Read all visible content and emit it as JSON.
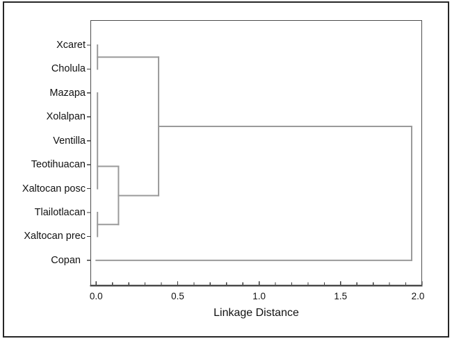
{
  "colors": {
    "dendrogram_line": "#9a9a9a",
    "axis": "#4c4c4c",
    "tick": "#3a3a3a",
    "text": "#111111",
    "figure_border": "#262626",
    "background": "#ffffff"
  },
  "chart_data": {
    "type": "dendrogram",
    "orientation": "horizontal, leaves on left",
    "xlabel": "Linkage Distance",
    "xlim": [
      0.0,
      2.0
    ],
    "x_tick_labels": [
      "0.0",
      "0.5",
      "1.0",
      "1.5",
      "2.0"
    ],
    "x_major_tick_values": [
      0.0,
      0.5,
      1.0,
      1.5,
      2.0
    ],
    "x_minor_tick_step": 0.1,
    "grid": "off",
    "leaves": [
      "Xcaret",
      "Cholula",
      "Mazapa",
      "Xolalpan",
      "Ventilla",
      "Teotihuacan",
      "Xaltocan posc",
      "Tlailotlacan",
      "Xaltocan prec",
      "Copan"
    ],
    "merges": [
      {
        "joins": "Xcaret + Cholula",
        "distance": 0.02
      },
      {
        "joins": "Mazapa + Xolalpan + Ventilla + Teotihuacan + Xaltocan posc (chained)",
        "distance": 0.02
      },
      {
        "joins": "Tlailotlacan + Xaltocan prec",
        "distance": 0.02
      },
      {
        "joins": "(Mazapa group) + (Tlailotlacan, Xaltocan prec)",
        "distance": 0.14
      },
      {
        "joins": "(Xcaret, Cholula) + (central 7-leaf group)",
        "distance": 0.38
      },
      {
        "joins": "(all above) + Copan",
        "distance": 1.94
      }
    ],
    "segments": [
      {
        "x1": 0.008,
        "i1": 0.0,
        "x2": 0.008,
        "i2": 1.0
      },
      {
        "x1": 0.008,
        "i1": 0.5,
        "x2": 0.383,
        "i2": 0.5
      },
      {
        "x1": 0.008,
        "i1": 2.0,
        "x2": 0.008,
        "i2": 6.0
      },
      {
        "x1": 0.008,
        "i1": 5.07,
        "x2": 0.137,
        "i2": 5.07
      },
      {
        "x1": 0.008,
        "i1": 7.0,
        "x2": 0.008,
        "i2": 8.0
      },
      {
        "x1": 0.008,
        "i1": 7.5,
        "x2": 0.137,
        "i2": 7.5
      },
      {
        "x1": 0.137,
        "i1": 5.07,
        "x2": 0.137,
        "i2": 7.5
      },
      {
        "x1": 0.137,
        "i1": 6.29,
        "x2": 0.383,
        "i2": 6.29
      },
      {
        "x1": 0.383,
        "i1": 0.5,
        "x2": 0.383,
        "i2": 6.29
      },
      {
        "x1": 0.383,
        "i1": 3.4,
        "x2": 1.936,
        "i2": 3.4
      },
      {
        "x1": 0.0,
        "i1": 9.0,
        "x2": 1.936,
        "i2": 9.0
      },
      {
        "x1": 1.936,
        "i1": 3.4,
        "x2": 1.936,
        "i2": 9.0
      }
    ]
  }
}
